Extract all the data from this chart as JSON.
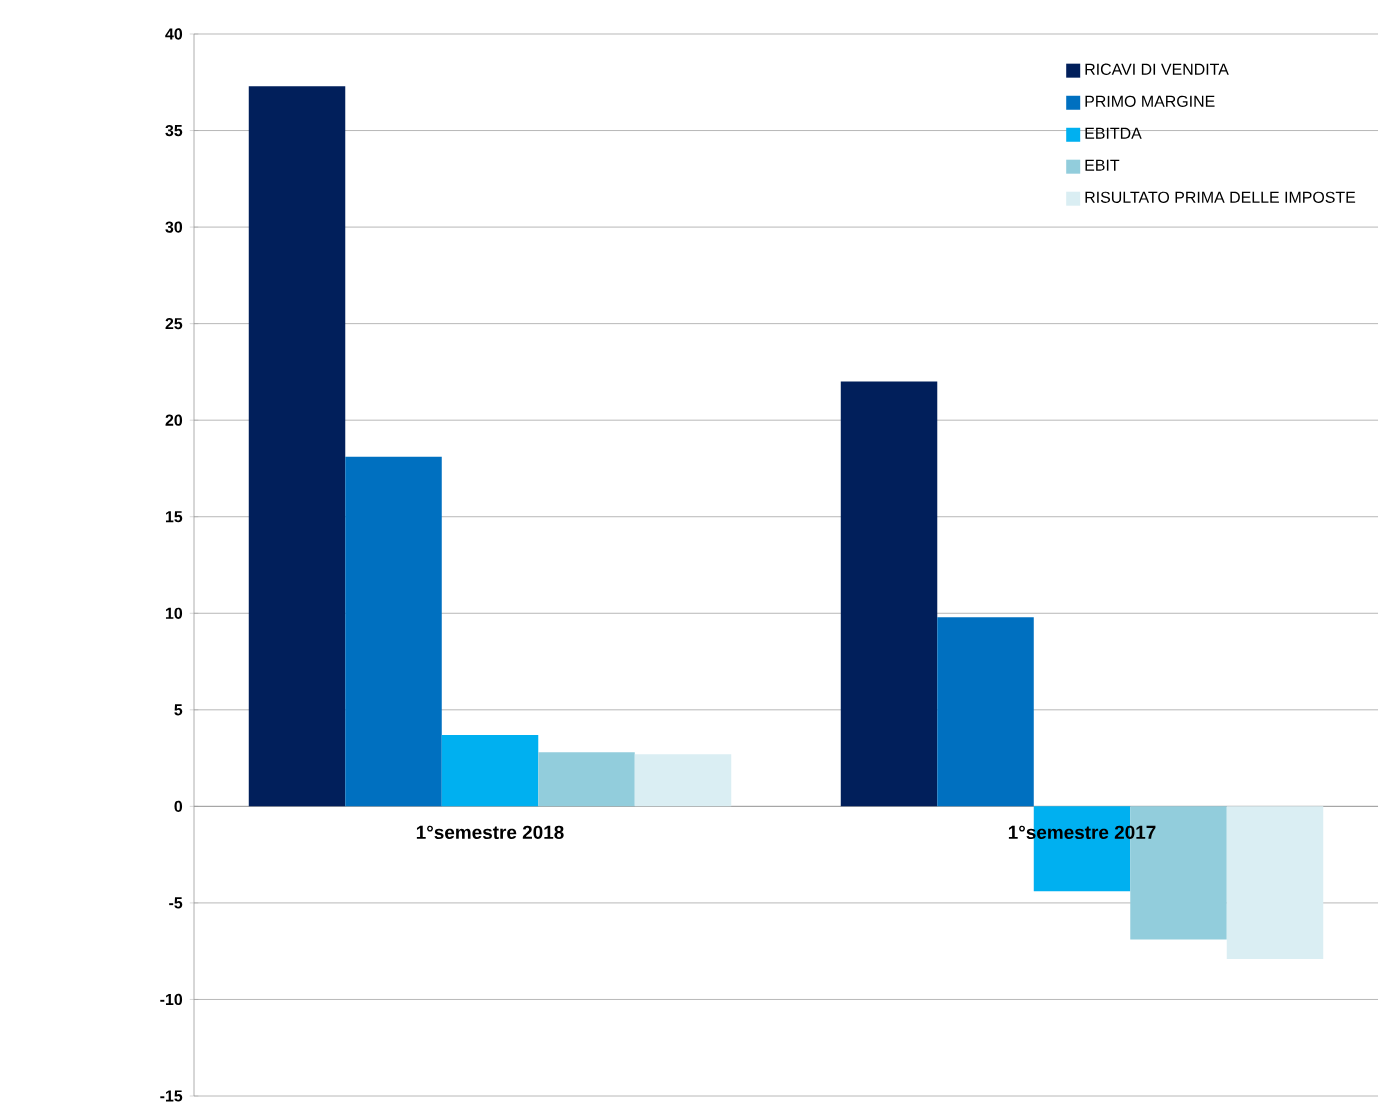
{
  "chart_data": {
    "type": "bar",
    "categories": [
      "1°semestre 2018",
      "1°semestre 2017"
    ],
    "series": [
      {
        "name": "RICAVI DI VENDITA",
        "color": "#011f5b",
        "values": [
          37.3,
          22.0
        ]
      },
      {
        "name": "PRIMO MARGINE",
        "color": "#0070c0",
        "values": [
          18.1,
          9.8
        ]
      },
      {
        "name": "EBITDA",
        "color": "#00b0f0",
        "values": [
          3.7,
          -4.4
        ]
      },
      {
        "name": "EBIT",
        "color": "#92cddc",
        "values": [
          2.8,
          -6.9
        ]
      },
      {
        "name": "RISULTATO PRIMA DELLE IMPOSTE",
        "color": "#daeef3",
        "values": [
          2.7,
          -7.9
        ]
      }
    ],
    "ylim": [
      -15,
      40
    ],
    "yticks": [
      -15,
      -10,
      -5,
      0,
      5,
      10,
      15,
      20,
      25,
      30,
      35,
      40
    ],
    "grid": "y",
    "legend": "top right"
  }
}
